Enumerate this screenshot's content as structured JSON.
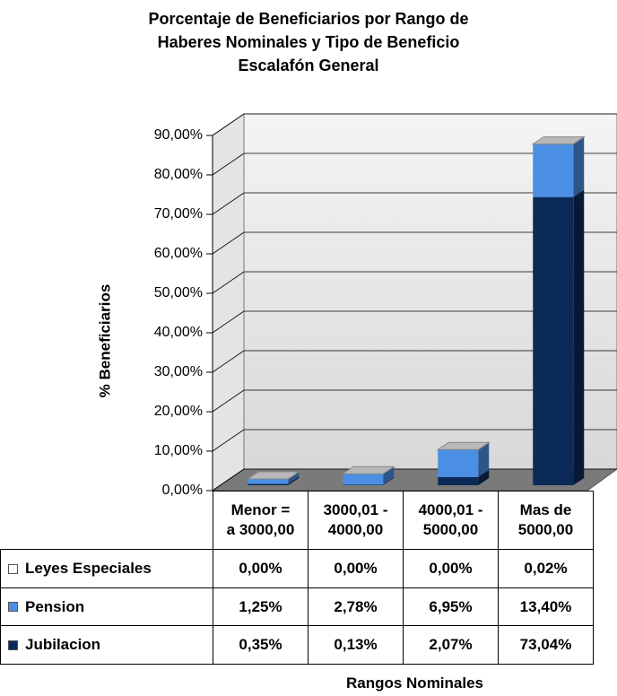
{
  "chart_data": {
    "type": "bar3d-stacked",
    "title": "Porcentaje de Beneficiarios por Rango de\nHaberes Nominales y Tipo de Beneficio\nEscalafón General",
    "ylabel": "% Beneficiarios",
    "xlabel": "Rangos Nominales",
    "categories": [
      "Menor =\na 3000,00",
      "3000,01 -\n4000,00",
      "4000,01 -\n5000,00",
      "Mas de\n5000,00"
    ],
    "series": [
      {
        "name": "Jubilacion",
        "color": "#0b2a57",
        "values": [
          0.35,
          0.13,
          2.07,
          73.04
        ],
        "value_labels": [
          "0,35%",
          "0,13%",
          "2,07%",
          "73,04%"
        ]
      },
      {
        "name": "Pension",
        "color": "#4a8fe3",
        "values": [
          1.25,
          2.78,
          6.95,
          13.4
        ],
        "value_labels": [
          "1,25%",
          "2,78%",
          "6,95%",
          "13,40%"
        ]
      },
      {
        "name": "Leyes Especiales",
        "color": "#ffffff",
        "values": [
          0.0,
          0.0,
          0.0,
          0.02
        ],
        "value_labels": [
          "0,00%",
          "0,00%",
          "0,00%",
          "0,02%"
        ]
      }
    ],
    "ylim": [
      0,
      90
    ],
    "yticks": [
      {
        "value": 0,
        "label": "0,00%"
      },
      {
        "value": 10,
        "label": "10,00%"
      },
      {
        "value": 20,
        "label": "20,00%"
      },
      {
        "value": 30,
        "label": "30,00%"
      },
      {
        "value": 40,
        "label": "40,00%"
      },
      {
        "value": 50,
        "label": "50,00%"
      },
      {
        "value": 60,
        "label": "60,00%"
      },
      {
        "value": 70,
        "label": "70,00%"
      },
      {
        "value": 80,
        "label": "80,00%"
      },
      {
        "value": 90,
        "label": "90,00%"
      }
    ],
    "grid": true
  }
}
